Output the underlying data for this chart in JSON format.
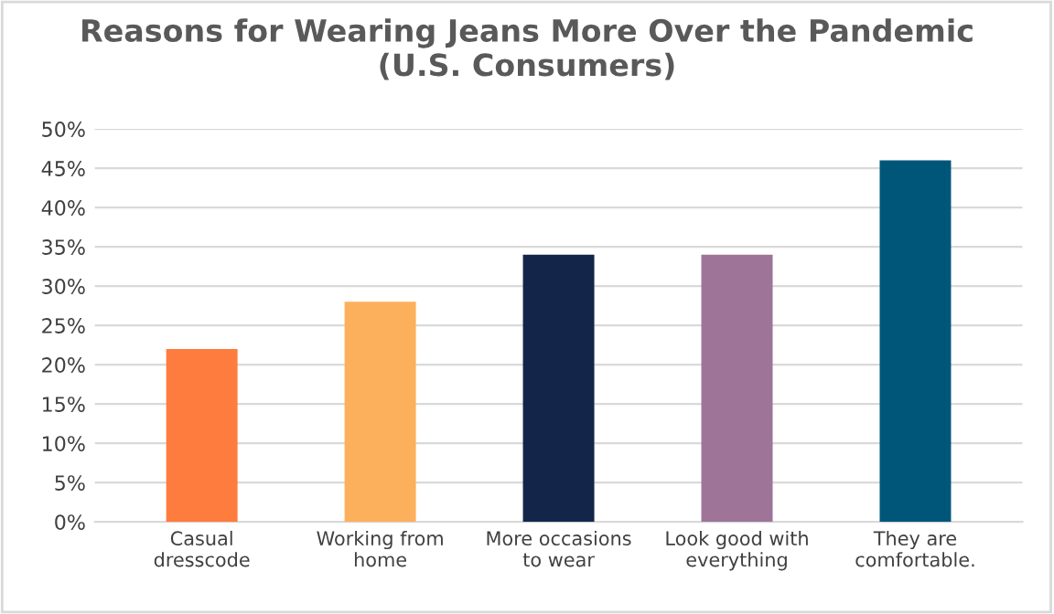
{
  "chart_data": {
    "type": "bar",
    "title": "Reasons for Wearing Jeans More Over the Pandemic\n(U.S. Consumers)",
    "categories": [
      "Casual\ndresscode",
      "Working from\nhome",
      "More occasions\nto wear",
      "Look good with\neverything",
      "They are\ncomfortable."
    ],
    "values": [
      22,
      28,
      34,
      34,
      46
    ],
    "colors": [
      "#fe7c3e",
      "#fdb05b",
      "#13264a",
      "#9e7499",
      "#005679"
    ],
    "ylim": [
      0,
      50
    ],
    "yticks": [
      {
        "value": 0,
        "label": "0%"
      },
      {
        "value": 5,
        "label": "5%"
      },
      {
        "value": 10,
        "label": "10%"
      },
      {
        "value": 15,
        "label": "15%"
      },
      {
        "value": 20,
        "label": "20%"
      },
      {
        "value": 25,
        "label": "25%"
      },
      {
        "value": 30,
        "label": "30%"
      },
      {
        "value": 35,
        "label": "35%"
      },
      {
        "value": 40,
        "label": "40%"
      },
      {
        "value": 45,
        "label": "45%"
      },
      {
        "value": 50,
        "label": "50%"
      }
    ],
    "grid": "y"
  }
}
